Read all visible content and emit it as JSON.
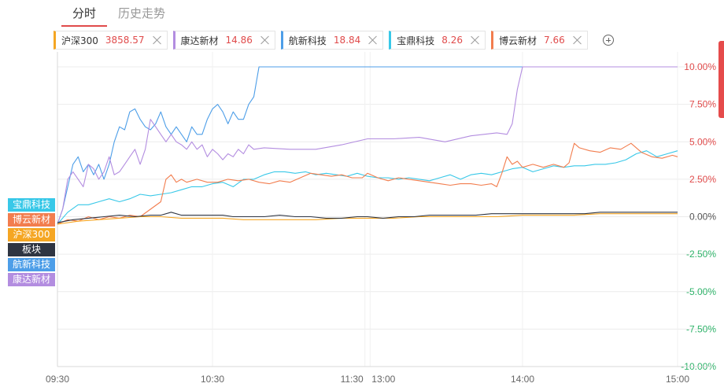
{
  "tabs": [
    {
      "label": "分时",
      "active": true
    },
    {
      "label": "历史走势",
      "active": false
    }
  ],
  "chips": [
    {
      "name": "沪深300",
      "value": "3858.57",
      "color": "#f5a623"
    },
    {
      "name": "康达新材",
      "value": "14.86",
      "color": "#b38de0"
    },
    {
      "name": "航新科技",
      "value": "18.84",
      "color": "#4d9ee8"
    },
    {
      "name": "宝鼎科技",
      "value": "8.26",
      "color": "#38c8e8"
    },
    {
      "name": "博云新材",
      "value": "7.66",
      "color": "#f27d4e"
    }
  ],
  "legend": [
    {
      "label": "宝鼎科技",
      "color": "#38c8e8"
    },
    {
      "label": "博云新材",
      "color": "#f27d4e"
    },
    {
      "label": "沪深300",
      "color": "#f5a623"
    },
    {
      "label": "板块",
      "color": "#2f3542"
    },
    {
      "label": "航新科技",
      "color": "#4d9ee8"
    },
    {
      "label": "康达新材",
      "color": "#b38de0"
    }
  ],
  "chart_data": {
    "type": "line",
    "y_unit": "%",
    "ylim": [
      -10,
      11
    ],
    "y_ticks": [
      {
        "value": 10,
        "label": "10.00%"
      },
      {
        "value": 7.5,
        "label": "7.50%"
      },
      {
        "value": 5,
        "label": "5.00%"
      },
      {
        "value": 2.5,
        "label": "2.50%"
      },
      {
        "value": 0,
        "label": "0.00%"
      },
      {
        "value": -2.5,
        "label": "-2.50%"
      },
      {
        "value": -5,
        "label": "-5.00%"
      },
      {
        "value": -7.5,
        "label": "-7.50%"
      },
      {
        "value": -10,
        "label": "-10.00%"
      }
    ],
    "x_ticks": [
      {
        "minute": 0,
        "label": "09:30"
      },
      {
        "minute": 60,
        "label": "10:30"
      },
      {
        "minute": 119,
        "label": "11:30"
      },
      {
        "minute": 121,
        "label": "13:00"
      },
      {
        "minute": 180,
        "label": "14:00"
      },
      {
        "minute": 240,
        "label": "15:00"
      }
    ],
    "x_minutes_total": 240,
    "grid": true,
    "legend_position": "left",
    "series": [
      {
        "name": "航新科技",
        "color": "#4d9ee8",
        "points": [
          [
            0,
            -0.5
          ],
          [
            2,
            0.5
          ],
          [
            4,
            2
          ],
          [
            6,
            3.5
          ],
          [
            8,
            4
          ],
          [
            10,
            3
          ],
          [
            12,
            3.5
          ],
          [
            14,
            2.8
          ],
          [
            16,
            3.5
          ],
          [
            18,
            2.5
          ],
          [
            20,
            3.5
          ],
          [
            22,
            5
          ],
          [
            24,
            6
          ],
          [
            26,
            5.8
          ],
          [
            28,
            7
          ],
          [
            30,
            7.2
          ],
          [
            32,
            6.5
          ],
          [
            34,
            6
          ],
          [
            36,
            5.8
          ],
          [
            38,
            6.2
          ],
          [
            40,
            7
          ],
          [
            42,
            6
          ],
          [
            44,
            5.5
          ],
          [
            46,
            6
          ],
          [
            48,
            5.5
          ],
          [
            50,
            5
          ],
          [
            52,
            6
          ],
          [
            54,
            5.5
          ],
          [
            56,
            5.5
          ],
          [
            58,
            6.5
          ],
          [
            60,
            7.2
          ],
          [
            62,
            7.5
          ],
          [
            64,
            7
          ],
          [
            66,
            6.2
          ],
          [
            68,
            7
          ],
          [
            70,
            6.5
          ],
          [
            72,
            6.5
          ],
          [
            74,
            7.5
          ],
          [
            76,
            8
          ],
          [
            78,
            10
          ],
          [
            80,
            10
          ],
          [
            240,
            10
          ]
        ]
      },
      {
        "name": "康达新材",
        "color": "#b38de0",
        "points": [
          [
            0,
            -0.5
          ],
          [
            2,
            0.5
          ],
          [
            4,
            2.5
          ],
          [
            6,
            3
          ],
          [
            8,
            2.5
          ],
          [
            10,
            2
          ],
          [
            12,
            3.5
          ],
          [
            14,
            3.2
          ],
          [
            16,
            2.5
          ],
          [
            18,
            3
          ],
          [
            20,
            4
          ],
          [
            22,
            2.8
          ],
          [
            24,
            3
          ],
          [
            26,
            3.5
          ],
          [
            28,
            4
          ],
          [
            30,
            4.5
          ],
          [
            32,
            3.5
          ],
          [
            34,
            4.5
          ],
          [
            36,
            6.5
          ],
          [
            38,
            6
          ],
          [
            40,
            5.5
          ],
          [
            42,
            5
          ],
          [
            44,
            5.5
          ],
          [
            46,
            5
          ],
          [
            48,
            4.8
          ],
          [
            50,
            4.5
          ],
          [
            52,
            5
          ],
          [
            54,
            4.5
          ],
          [
            56,
            4.8
          ],
          [
            58,
            4
          ],
          [
            60,
            4.5
          ],
          [
            62,
            4.2
          ],
          [
            64,
            3.8
          ],
          [
            66,
            4.2
          ],
          [
            68,
            4
          ],
          [
            70,
            4.5
          ],
          [
            72,
            4.2
          ],
          [
            74,
            4.8
          ],
          [
            76,
            4.5
          ],
          [
            80,
            4.6
          ],
          [
            90,
            4.5
          ],
          [
            100,
            4.5
          ],
          [
            110,
            4.8
          ],
          [
            120,
            5.2
          ],
          [
            130,
            5.2
          ],
          [
            140,
            5.3
          ],
          [
            150,
            5
          ],
          [
            160,
            5.4
          ],
          [
            170,
            5.6
          ],
          [
            174,
            5.5
          ],
          [
            176,
            6.2
          ],
          [
            178,
            8.5
          ],
          [
            180,
            10
          ],
          [
            240,
            10
          ]
        ]
      },
      {
        "name": "宝鼎科技",
        "color": "#38c8e8",
        "points": [
          [
            0,
            -0.5
          ],
          [
            4,
            0.3
          ],
          [
            8,
            0.8
          ],
          [
            12,
            0.8
          ],
          [
            16,
            1
          ],
          [
            20,
            1.2
          ],
          [
            24,
            1
          ],
          [
            28,
            1.2
          ],
          [
            32,
            1.5
          ],
          [
            36,
            1.4
          ],
          [
            40,
            1.5
          ],
          [
            44,
            1.6
          ],
          [
            48,
            1.8
          ],
          [
            52,
            2
          ],
          [
            56,
            2
          ],
          [
            60,
            2.2
          ],
          [
            64,
            2.3
          ],
          [
            68,
            2
          ],
          [
            72,
            2.5
          ],
          [
            76,
            2.5
          ],
          [
            80,
            2.8
          ],
          [
            84,
            3
          ],
          [
            88,
            3
          ],
          [
            92,
            2.9
          ],
          [
            96,
            3
          ],
          [
            100,
            2.8
          ],
          [
            104,
            2.9
          ],
          [
            108,
            2.8
          ],
          [
            112,
            2.7
          ],
          [
            116,
            2.9
          ],
          [
            120,
            2.7
          ],
          [
            124,
            2.6
          ],
          [
            128,
            2.6
          ],
          [
            132,
            2.5
          ],
          [
            136,
            2.6
          ],
          [
            140,
            2.5
          ],
          [
            144,
            2.4
          ],
          [
            148,
            2.6
          ],
          [
            152,
            2.8
          ],
          [
            156,
            2.5
          ],
          [
            160,
            2.8
          ],
          [
            164,
            2.9
          ],
          [
            168,
            2.8
          ],
          [
            172,
            3
          ],
          [
            176,
            3.2
          ],
          [
            180,
            3.3
          ],
          [
            184,
            3
          ],
          [
            188,
            3.2
          ],
          [
            192,
            3.4
          ],
          [
            196,
            3.3
          ],
          [
            200,
            3.4
          ],
          [
            204,
            3.4
          ],
          [
            208,
            3.5
          ],
          [
            212,
            3.5
          ],
          [
            216,
            3.6
          ],
          [
            220,
            3.8
          ],
          [
            224,
            4.2
          ],
          [
            228,
            4.4
          ],
          [
            232,
            4
          ],
          [
            236,
            4.2
          ],
          [
            240,
            4.4
          ]
        ]
      },
      {
        "name": "博云新材",
        "color": "#f27d4e",
        "points": [
          [
            0,
            -0.5
          ],
          [
            4,
            -0.2
          ],
          [
            8,
            -0.3
          ],
          [
            12,
            0
          ],
          [
            16,
            -0.2
          ],
          [
            20,
            0
          ],
          [
            24,
            -0.1
          ],
          [
            28,
            0.1
          ],
          [
            32,
            0
          ],
          [
            36,
            0.5
          ],
          [
            40,
            1
          ],
          [
            42,
            2.5
          ],
          [
            44,
            2.8
          ],
          [
            46,
            2.3
          ],
          [
            48,
            2.5
          ],
          [
            50,
            2.3
          ],
          [
            54,
            2.5
          ],
          [
            58,
            2.3
          ],
          [
            62,
            2.3
          ],
          [
            66,
            2.5
          ],
          [
            70,
            2.4
          ],
          [
            74,
            2.5
          ],
          [
            78,
            2.3
          ],
          [
            82,
            2.2
          ],
          [
            86,
            2.4
          ],
          [
            90,
            2.3
          ],
          [
            94,
            2.6
          ],
          [
            98,
            2.9
          ],
          [
            102,
            2.8
          ],
          [
            106,
            2.7
          ],
          [
            110,
            2.8
          ],
          [
            114,
            2.6
          ],
          [
            118,
            2.6
          ],
          [
            120,
            2.9
          ],
          [
            124,
            2.6
          ],
          [
            128,
            2.4
          ],
          [
            132,
            2.6
          ],
          [
            136,
            2.5
          ],
          [
            140,
            2.4
          ],
          [
            144,
            2.3
          ],
          [
            148,
            2.2
          ],
          [
            152,
            2.1
          ],
          [
            156,
            2.2
          ],
          [
            160,
            2.2
          ],
          [
            164,
            2.1
          ],
          [
            168,
            2.2
          ],
          [
            170,
            2
          ],
          [
            172,
            2.9
          ],
          [
            174,
            4
          ],
          [
            176,
            3.5
          ],
          [
            178,
            3.7
          ],
          [
            180,
            3.3
          ],
          [
            184,
            3.5
          ],
          [
            188,
            3.3
          ],
          [
            192,
            3.5
          ],
          [
            196,
            3.3
          ],
          [
            198,
            3.6
          ],
          [
            200,
            4.9
          ],
          [
            202,
            4.6
          ],
          [
            206,
            4.4
          ],
          [
            210,
            4.3
          ],
          [
            214,
            4.6
          ],
          [
            218,
            4.5
          ],
          [
            222,
            4.9
          ],
          [
            226,
            4.3
          ],
          [
            230,
            4
          ],
          [
            234,
            3.9
          ],
          [
            238,
            4.1
          ],
          [
            240,
            4
          ]
        ]
      },
      {
        "name": "沪深300",
        "color": "#f5a623",
        "points": [
          [
            0,
            -0.5
          ],
          [
            8,
            -0.3
          ],
          [
            16,
            -0.2
          ],
          [
            24,
            -0.1
          ],
          [
            32,
            0
          ],
          [
            40,
            0
          ],
          [
            48,
            -0.1
          ],
          [
            56,
            -0.1
          ],
          [
            64,
            -0.1
          ],
          [
            72,
            -0.2
          ],
          [
            80,
            -0.2
          ],
          [
            90,
            -0.2
          ],
          [
            100,
            -0.2
          ],
          [
            110,
            -0.1
          ],
          [
            120,
            -0.1
          ],
          [
            130,
            -0.1
          ],
          [
            140,
            0
          ],
          [
            150,
            0
          ],
          [
            160,
            0
          ],
          [
            170,
            0
          ],
          [
            180,
            0.1
          ],
          [
            190,
            0.1
          ],
          [
            200,
            0.1
          ],
          [
            210,
            0.2
          ],
          [
            220,
            0.2
          ],
          [
            230,
            0.2
          ],
          [
            240,
            0.2
          ]
        ]
      },
      {
        "name": "板块",
        "color": "#2f3542",
        "points": [
          [
            0,
            -0.4
          ],
          [
            6,
            -0.2
          ],
          [
            12,
            -0.1
          ],
          [
            18,
            0
          ],
          [
            24,
            0.1
          ],
          [
            30,
            0
          ],
          [
            36,
            0.1
          ],
          [
            40,
            0.1
          ],
          [
            44,
            0.3
          ],
          [
            48,
            0.1
          ],
          [
            52,
            0.1
          ],
          [
            56,
            0.1
          ],
          [
            60,
            0.1
          ],
          [
            64,
            0.1
          ],
          [
            68,
            0
          ],
          [
            72,
            0
          ],
          [
            76,
            0
          ],
          [
            80,
            0
          ],
          [
            86,
            0.1
          ],
          [
            92,
            0
          ],
          [
            98,
            0
          ],
          [
            104,
            -0.1
          ],
          [
            110,
            -0.1
          ],
          [
            116,
            0
          ],
          [
            120,
            0
          ],
          [
            126,
            -0.1
          ],
          [
            132,
            0
          ],
          [
            138,
            0
          ],
          [
            144,
            0.1
          ],
          [
            150,
            0.1
          ],
          [
            156,
            0.1
          ],
          [
            162,
            0.1
          ],
          [
            168,
            0.2
          ],
          [
            174,
            0.2
          ],
          [
            180,
            0.2
          ],
          [
            186,
            0.2
          ],
          [
            192,
            0.2
          ],
          [
            198,
            0.2
          ],
          [
            204,
            0.2
          ],
          [
            210,
            0.3
          ],
          [
            216,
            0.3
          ],
          [
            222,
            0.3
          ],
          [
            228,
            0.3
          ],
          [
            234,
            0.3
          ],
          [
            240,
            0.3
          ]
        ]
      }
    ]
  }
}
